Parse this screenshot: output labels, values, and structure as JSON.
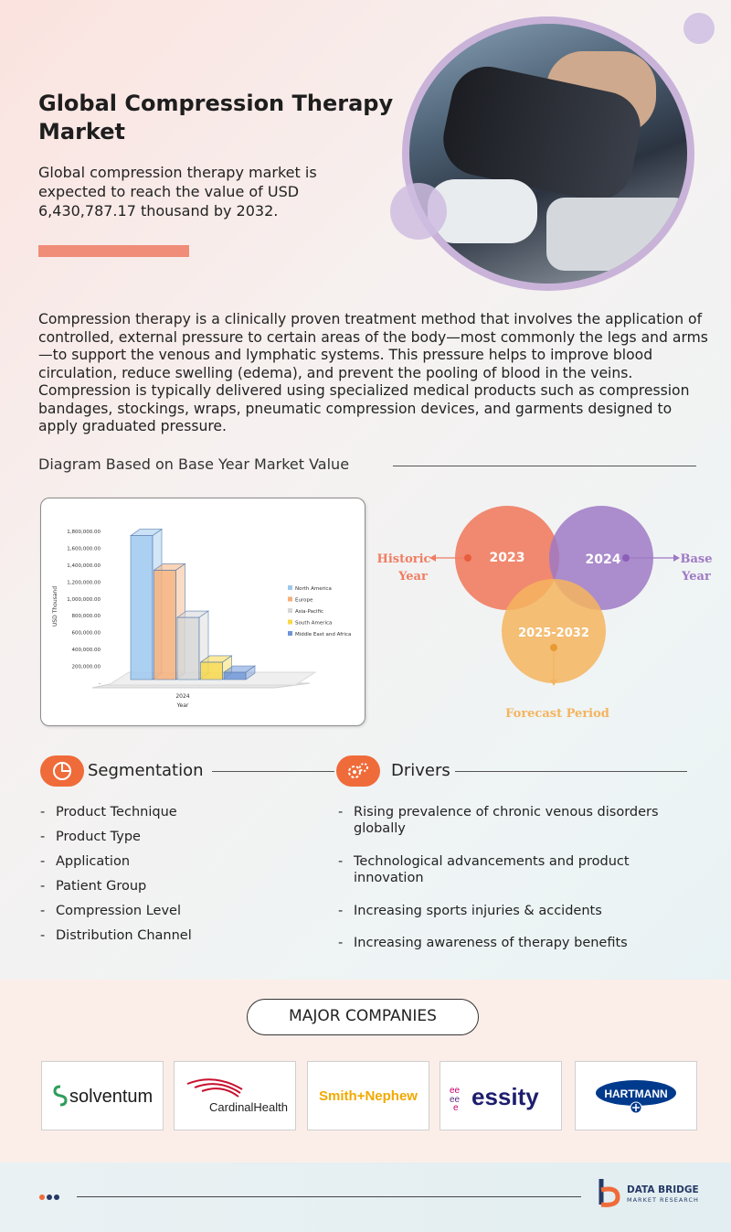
{
  "header": {
    "title": "Global Compression Therapy Market",
    "subtitle": "Global compression therapy market is expected to reach the value of USD 6,430,787.17 thousand by 2032."
  },
  "description": "Compression therapy is a clinically proven treatment method that involves the application of controlled, external pressure to certain areas of the body—most commonly the legs and arms—to support the venous and lymphatic systems. This pressure helps to improve blood circulation, reduce swelling (edema), and prevent the pooling of blood in the veins. Compression is typically delivered using specialized medical products such as compression bandages, stockings, wraps, pneumatic compression devices, and garments designed to apply graduated pressure.",
  "diagram_heading": "Diagram Based on Base Year Market Value",
  "chart_data": {
    "type": "bar",
    "categories": [
      "2024"
    ],
    "xlabel": "Year",
    "ylabel": "USD Thousand",
    "ylim": [
      0,
      1800000
    ],
    "yticks": [
      "-",
      "200,000.00",
      "400,000.00",
      "600,000.00",
      "800,000.00",
      "1,000,000.00",
      "1,200,000.00",
      "1,400,000.00",
      "1,600,000.00",
      "1,800,000.00"
    ],
    "legend_position": "right",
    "series": [
      {
        "name": "North America",
        "values": [
          1750000
        ],
        "color": "#9ec8ee"
      },
      {
        "name": "Europe",
        "values": [
          1340000
        ],
        "color": "#f6b07a"
      },
      {
        "name": "Asia-Pacific",
        "values": [
          780000
        ],
        "color": "#d6d6d6"
      },
      {
        "name": "South America",
        "values": [
          250000
        ],
        "color": "#f8d84a"
      },
      {
        "name": "Middle East and Africa",
        "values": [
          130000
        ],
        "color": "#6f95d8"
      }
    ]
  },
  "venn": {
    "historic_year": "2023",
    "base_year": "2024",
    "forecast": "2025-2032",
    "historic_label": [
      "Historic",
      "Year"
    ],
    "base_label": [
      "Base",
      "Year"
    ],
    "forecast_label": "Forecast Period",
    "colors": {
      "historic": "#ef7d62",
      "base": "#9f79c4",
      "forecast": "#f4b45e"
    }
  },
  "segmentation": {
    "title": "Segmentation",
    "items": [
      "Product Technique",
      "Product Type",
      "Application",
      "Patient Group",
      "Compression Level",
      "Distribution Channel"
    ]
  },
  "drivers": {
    "title": "Drivers",
    "items": [
      "Rising prevalence of chronic venous disorders globally",
      "Technological advancements and product innovation",
      "Increasing sports injuries & accidents",
      "Increasing awareness of therapy benefits"
    ]
  },
  "companies": {
    "title": "MAJOR COMPANIES",
    "logos": [
      "solventum",
      "CardinalHealth",
      "Smith+Nephew",
      "essity",
      "HARTMANN"
    ]
  },
  "footer": {
    "brand": "DATA BRIDGE",
    "brand_sub": "MARKET RESEARCH"
  },
  "colors": {
    "accent": "#ef6b3a",
    "accent_bar": "#ef8d79",
    "lavender": "#c9b3d9"
  }
}
